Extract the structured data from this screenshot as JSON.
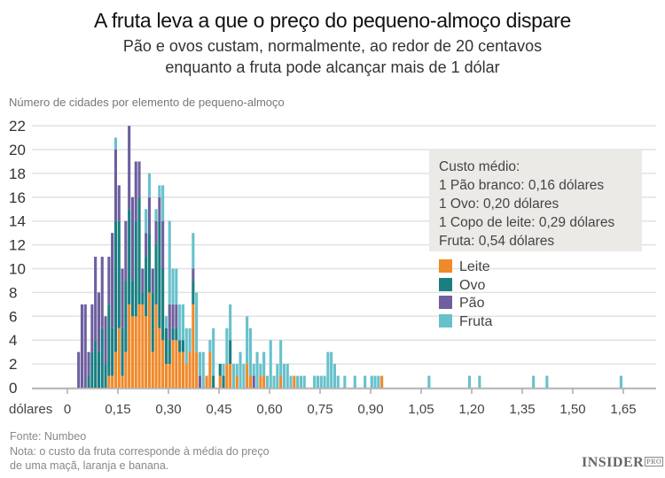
{
  "header": {
    "title": "A fruta leva a que o preço do pequeno-almoço dispare",
    "subtitle_line1": "Pão e ovos custam, normalmente, ao redor de 20 centavos",
    "subtitle_line2": "enquanto a fruta pode alcançar mais de 1 dólar"
  },
  "annotation": {
    "heading": "Custo médio:",
    "lines": [
      "1 Pão branco: 0,16 dólares",
      "1 Ovo: 0,20 dólares",
      "1 Copo de leite: 0,29 dólares",
      "Fruta: 0,54 dólares"
    ]
  },
  "footer": {
    "source": "Fonte: Numbeo",
    "note_line1": "Nota: o custo da fruta corresponde à média do preço",
    "note_line2": "de uma maçã, laranja e banana.",
    "logo": "INSIDER",
    "logo_suffix": "PRO"
  },
  "chart_data": {
    "type": "bar",
    "stacked": true,
    "ylabel": "Número de cidades por elemento de pequeno-almoço",
    "xlabel": "dólares",
    "ylim": [
      0,
      22
    ],
    "xlim": [
      0,
      1.7
    ],
    "grid": true,
    "legend_position": "right",
    "yticks": [
      "0",
      "2",
      "4",
      "6",
      "8",
      "10",
      "12",
      "14",
      "16",
      "18",
      "20",
      "22"
    ],
    "xticks": [
      "0",
      "0,15",
      "0,30",
      "0,45",
      "0,60",
      "0,75",
      "0,90",
      "1,05",
      "1,20",
      "1,35",
      "1,50",
      "1,65"
    ],
    "x": [
      0.03,
      0.04,
      0.05,
      0.06,
      0.07,
      0.08,
      0.09,
      0.1,
      0.11,
      0.12,
      0.13,
      0.14,
      0.15,
      0.16,
      0.17,
      0.18,
      0.19,
      0.2,
      0.21,
      0.22,
      0.23,
      0.24,
      0.25,
      0.26,
      0.27,
      0.28,
      0.29,
      0.3,
      0.31,
      0.32,
      0.33,
      0.34,
      0.35,
      0.36,
      0.37,
      0.38,
      0.39,
      0.4,
      0.41,
      0.42,
      0.43,
      0.45,
      0.46,
      0.47,
      0.48,
      0.49,
      0.5,
      0.51,
      0.52,
      0.53,
      0.54,
      0.55,
      0.56,
      0.57,
      0.58,
      0.59,
      0.6,
      0.61,
      0.62,
      0.63,
      0.64,
      0.65,
      0.66,
      0.67,
      0.68,
      0.69,
      0.7,
      0.73,
      0.74,
      0.75,
      0.76,
      0.77,
      0.78,
      0.79,
      0.8,
      0.82,
      0.85,
      0.88,
      0.9,
      0.91,
      0.92,
      0.93,
      1.07,
      1.19,
      1.22,
      1.38,
      1.42,
      1.64
    ],
    "series": [
      {
        "name": "Leite",
        "color": "#f0892a",
        "values": [
          0,
          0,
          0,
          0,
          0,
          0,
          0,
          0,
          0,
          1,
          1,
          3,
          5,
          1,
          3,
          7,
          6,
          6,
          7,
          7,
          6,
          8,
          3,
          7,
          5,
          4,
          2,
          2,
          4,
          4,
          3,
          3,
          2,
          3,
          7,
          3,
          0,
          0,
          1,
          3,
          0,
          1,
          0,
          2,
          2,
          0,
          1,
          0,
          0,
          2,
          1,
          0,
          0,
          1,
          1,
          0,
          0,
          0,
          0,
          1,
          0,
          0,
          0,
          1,
          0,
          0,
          0,
          0,
          0,
          0,
          0,
          0,
          0,
          0,
          0,
          0,
          0,
          0,
          0,
          0,
          0,
          1,
          0,
          0,
          0,
          0,
          0,
          0
        ]
      },
      {
        "name": "Ovo",
        "color": "#1a7f82",
        "values": [
          0,
          0,
          0,
          1,
          3,
          4,
          3,
          5,
          2,
          6,
          4,
          11,
          9,
          4,
          6,
          8,
          3,
          8,
          9,
          1,
          5,
          5,
          5,
          5,
          9,
          6,
          3,
          2,
          1,
          1,
          1,
          1,
          0,
          0,
          2,
          0,
          0,
          0,
          0,
          0,
          1,
          1,
          1,
          0,
          2,
          0,
          0,
          0,
          0,
          0,
          0,
          0,
          0,
          0,
          0,
          0,
          0,
          0,
          0,
          0,
          0,
          0,
          0,
          0,
          0,
          0,
          0,
          0,
          0,
          0,
          0,
          0,
          0,
          0,
          0,
          0,
          0,
          0,
          0,
          0,
          0,
          0,
          0,
          0,
          0,
          0,
          0,
          0
        ]
      },
      {
        "name": "Pão",
        "color": "#6e5f9e",
        "values": [
          3,
          7,
          7,
          2,
          4,
          7,
          5,
          6,
          4,
          4,
          8,
          6,
          3,
          5,
          5,
          7,
          7,
          5,
          3,
          2,
          2,
          3,
          2,
          2,
          2,
          4,
          0,
          3,
          2,
          2,
          0,
          0,
          0,
          0,
          1,
          0,
          1,
          0,
          0,
          0,
          0,
          0,
          0,
          0,
          0,
          0,
          0,
          0,
          0,
          0,
          0,
          1,
          0,
          0,
          0,
          0,
          0,
          0,
          0,
          0,
          0,
          0,
          0,
          0,
          0,
          0,
          0,
          0,
          0,
          0,
          0,
          0,
          0,
          0,
          0,
          0,
          0,
          0,
          0,
          0,
          0,
          0,
          0,
          0,
          0,
          0,
          0,
          0
        ]
      },
      {
        "name": "Fruta",
        "color": "#67c1cb",
        "values": [
          0,
          0,
          0,
          0,
          0,
          0,
          0,
          0,
          0,
          0,
          0,
          1,
          0,
          0,
          0,
          0,
          0,
          0,
          0,
          0,
          2,
          2,
          0,
          1,
          1,
          3,
          1,
          7,
          3,
          3,
          3,
          3,
          3,
          2,
          3,
          5,
          2,
          3,
          0,
          1,
          4,
          0,
          1,
          3,
          3,
          2,
          1,
          3,
          2,
          4,
          4,
          1,
          3,
          1,
          2,
          1,
          4,
          1,
          2,
          3,
          2,
          2,
          1,
          0,
          1,
          1,
          1,
          1,
          1,
          1,
          1,
          3,
          3,
          2,
          1,
          1,
          1,
          1,
          1,
          1,
          1,
          0,
          1,
          1,
          1,
          1,
          1,
          1
        ]
      }
    ]
  }
}
